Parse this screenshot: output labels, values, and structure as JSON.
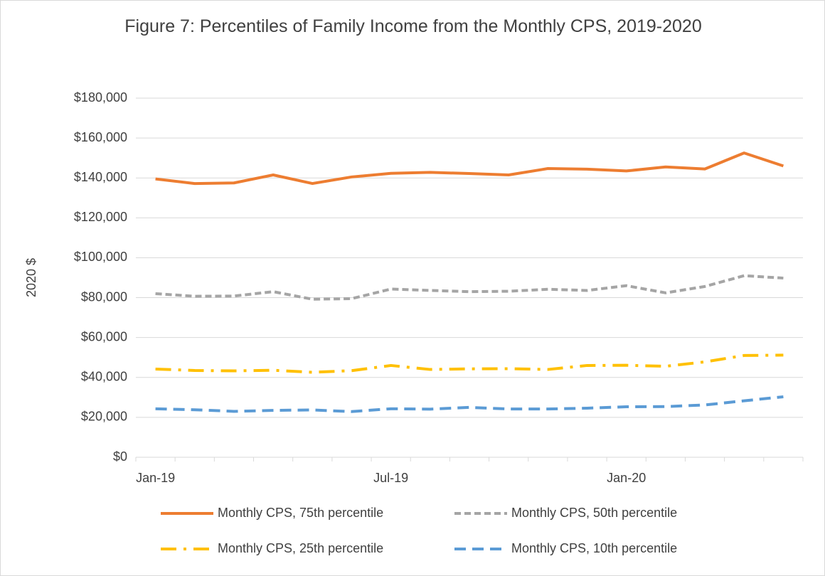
{
  "chart_data": {
    "type": "line",
    "title": "Figure 7: Percentiles of Family Income from the Monthly CPS, 2019-2020",
    "y_label": "2020 $",
    "categories": [
      "Jan-19",
      null,
      null,
      null,
      null,
      null,
      "Jul-19",
      null,
      null,
      null,
      null,
      null,
      "Jan-20",
      null,
      null,
      null,
      null
    ],
    "series": [
      {
        "name": "Monthly CPS, 75th percentile",
        "color": "#ED7D31",
        "dash": "solid",
        "values": [
          139500,
          137200,
          137500,
          141500,
          137200,
          140500,
          142300,
          142800,
          142200,
          141500,
          144700,
          144400,
          143500,
          145500,
          144500,
          152500,
          146000
        ]
      },
      {
        "name": "Monthly CPS, 50th percentile",
        "color": "#A5A5A5",
        "dash": "short-dash",
        "values": [
          82000,
          80700,
          80800,
          83000,
          79200,
          79500,
          84300,
          83600,
          83000,
          83200,
          84200,
          83600,
          86000,
          82400,
          85600,
          91000,
          89800
        ]
      },
      {
        "name": "Monthly CPS, 25th percentile",
        "color": "#FFC000",
        "dash": "long-dash-dot",
        "values": [
          44200,
          43500,
          43300,
          43600,
          42600,
          43400,
          46000,
          44000,
          44300,
          44400,
          44000,
          46000,
          46100,
          45600,
          47800,
          51000,
          51200
        ]
      },
      {
        "name": "Monthly CPS, 10th percentile",
        "color": "#5B9BD5",
        "dash": "dash",
        "values": [
          24300,
          23800,
          23000,
          23500,
          23700,
          22900,
          24300,
          24100,
          25000,
          24200,
          24200,
          24600,
          25300,
          25400,
          26200,
          28300,
          30300
        ]
      }
    ],
    "ylim": [
      0,
      180000
    ],
    "yticks": [
      {
        "value": 0,
        "label": "$0"
      },
      {
        "value": 20000,
        "label": "$20,000"
      },
      {
        "value": 40000,
        "label": "$40,000"
      },
      {
        "value": 60000,
        "label": "$60,000"
      },
      {
        "value": 80000,
        "label": "$80,000"
      },
      {
        "value": 100000,
        "label": "$100,000"
      },
      {
        "value": 120000,
        "label": "$120,000"
      },
      {
        "value": 140000,
        "label": "$140,000"
      },
      {
        "value": 160000,
        "label": "$160,000"
      },
      {
        "value": 180000,
        "label": "$180,000"
      }
    ],
    "grid": true
  }
}
